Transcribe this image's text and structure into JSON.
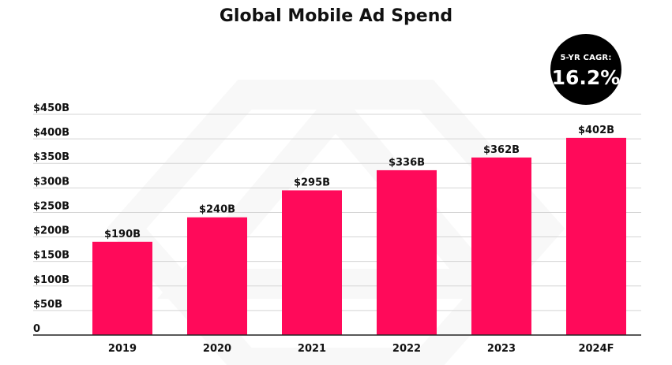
{
  "chart_data": {
    "type": "bar",
    "title": "Global Mobile Ad Spend",
    "categories": [
      "2019",
      "2020",
      "2021",
      "2022",
      "2023",
      "2024F"
    ],
    "values": [
      190,
      240,
      295,
      336,
      362,
      402
    ],
    "data_labels": [
      "$190B",
      "$240B",
      "$295B",
      "$336B",
      "$362B",
      "$402B"
    ],
    "y_ticks": [
      0,
      50,
      100,
      150,
      200,
      250,
      300,
      350,
      400,
      450
    ],
    "y_tick_labels": [
      "0",
      "$50B",
      "$100B",
      "$150B",
      "$200B",
      "$250B",
      "$300B",
      "$350B",
      "$400B",
      "$450B"
    ],
    "ylim": [
      0,
      450
    ],
    "xlabel": "",
    "ylabel": "",
    "grid": true,
    "bar_color": "#ff0a5a"
  },
  "badge": {
    "label": "5-YR CAGR:",
    "value": "16.2%"
  }
}
